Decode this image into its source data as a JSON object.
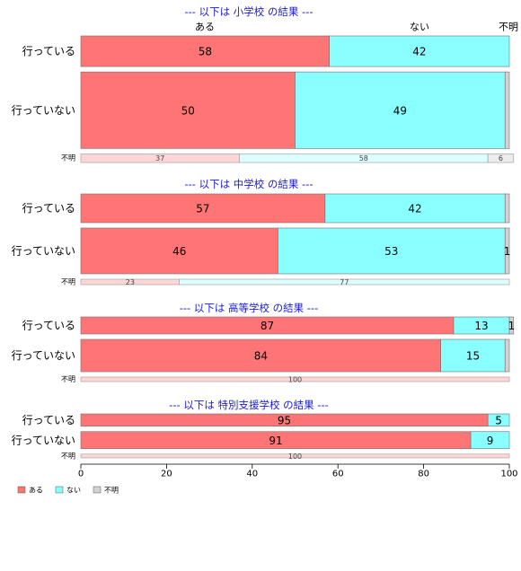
{
  "colors": {
    "aru": "#ff7575",
    "nai": "#8affff",
    "fumei": "#d3d3d3",
    "aru_light": "#ffd6d6",
    "nai_light": "#dcffff",
    "fumei_light": "#ececec",
    "title": "#1a1adb"
  },
  "column_headers": [
    "ある",
    "ない",
    "不明"
  ],
  "chart_data": {
    "type": "bar",
    "orientation": "horizontal",
    "stacked": true,
    "xlim": [
      0,
      100
    ],
    "x_ticks": [
      0,
      20,
      40,
      60,
      80,
      100
    ],
    "series_names": [
      "ある",
      "ない",
      "不明"
    ],
    "panels": [
      {
        "title": "--- 以下は 小学校 の結果 ---",
        "rows": [
          {
            "label": "行っている",
            "values": [
              58,
              42,
              0
            ],
            "labels": [
              "58",
              "42",
              ""
            ],
            "weight": 32
          },
          {
            "label": "行っていない",
            "values": [
              50,
              49,
              1
            ],
            "labels": [
              "50",
              "49",
              ""
            ],
            "weight": 80
          },
          {
            "label": "不明",
            "values": [
              37,
              58,
              6
            ],
            "labels": [
              "37",
              "58",
              "6"
            ],
            "weight": 9,
            "minor": true
          }
        ]
      },
      {
        "title": "--- 以下は 中学校 の結果 ---",
        "rows": [
          {
            "label": "行っている",
            "values": [
              57,
              42,
              1
            ],
            "labels": [
              "57",
              "42",
              ""
            ],
            "weight": 32
          },
          {
            "label": "行っていない",
            "values": [
              46,
              53,
              1
            ],
            "labels": [
              "46",
              "53",
              "1"
            ],
            "weight": 51
          },
          {
            "label": "不明",
            "values": [
              23,
              77,
              0
            ],
            "labels": [
              "23",
              "77",
              ""
            ],
            "weight": 6,
            "minor": true
          }
        ]
      },
      {
        "title": "--- 以下は 高等学校 の結果 ---",
        "rows": [
          {
            "label": "行っている",
            "values": [
              87,
              13,
              1
            ],
            "labels": [
              "87",
              "13",
              "1"
            ],
            "weight": 19
          },
          {
            "label": "行っていない",
            "values": [
              84,
              15,
              1
            ],
            "labels": [
              "84",
              "15",
              ""
            ],
            "weight": 36
          },
          {
            "label": "不明",
            "values": [
              100,
              0,
              0
            ],
            "labels": [
              "100",
              "",
              ""
            ],
            "weight": 5,
            "minor": true
          }
        ]
      },
      {
        "title": "--- 以下は 特別支援学校 の結果 ---",
        "rows": [
          {
            "label": "行っている",
            "values": [
              95,
              5,
              0
            ],
            "labels": [
              "95",
              "5",
              ""
            ],
            "weight": 13
          },
          {
            "label": "行っていない",
            "values": [
              91,
              9,
              0
            ],
            "labels": [
              "91",
              "9",
              ""
            ],
            "weight": 18
          },
          {
            "label": "不明",
            "values": [
              100,
              0,
              0
            ],
            "labels": [
              "100",
              "",
              ""
            ],
            "weight": 4,
            "minor": true
          }
        ]
      }
    ],
    "legend": {
      "position": "bottom-left",
      "entries": [
        "ある",
        "ない",
        "不明"
      ]
    }
  }
}
